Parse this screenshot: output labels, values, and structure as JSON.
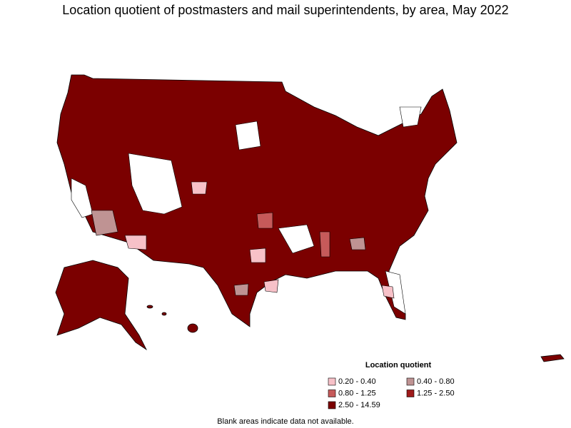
{
  "title": "Location quotient of postmasters and mail superintendents, by area, May 2022",
  "legend": {
    "title": "Location quotient",
    "items": [
      {
        "label": "0.20 - 0.40",
        "color": "#f7c1c8"
      },
      {
        "label": "0.40 - 0.80",
        "color": "#bf9393"
      },
      {
        "label": "0.80 - 1.25",
        "color": "#c65a5a"
      },
      {
        "label": "1.25 - 2.50",
        "color": "#9e1a1a"
      },
      {
        "label": "2.50 - 14.59",
        "color": "#7b0000"
      }
    ]
  },
  "note": "Blank areas indicate data not available."
}
